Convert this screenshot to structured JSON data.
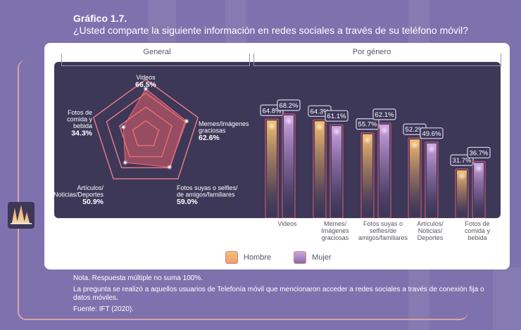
{
  "header": {
    "figure_number": "Gráfico 1.7.",
    "title": "¿Usted comparte la siguiente información en redes sociales a través de su teléfono móvil?"
  },
  "sections": {
    "general_label": "General",
    "gender_label": "Por género"
  },
  "legend": {
    "hombre": "Hombre",
    "mujer": "Mujer"
  },
  "colors": {
    "background": "#7e72ae",
    "panel": "#3d3758",
    "radar_fill": "#e0606a",
    "radar_grid": "#e07a86",
    "hombre": "#f0b060",
    "mujer": "#b090d0",
    "label_border": "#d8d4e8"
  },
  "notes": {
    "nota": "Nota. Respuesta múltiple no suma 100%.",
    "pregunta": "La pregunta se realizó a aquellos usuarios de Telefonía móvil que mencionaron acceder a redes sociales a través de conexión fija o datos móviles.",
    "fuente": "Fuente:  IFT (2020)."
  },
  "side_icon": "chart-peaks-icon",
  "chart_data": [
    {
      "type": "radar",
      "title": "General",
      "categories": [
        "Videos",
        "Memes/Imágenes graciosas",
        "Fotos suyas o selfies/ de amigos/familiares",
        "Artículos/ Noticias/Deportes",
        "Fotos de comida y bebida"
      ],
      "category_lines": [
        [
          "Videos"
        ],
        [
          "Memes/Imágenes",
          "graciosas"
        ],
        [
          "Fotos suyas o selfies/",
          "de amigos/familiares"
        ],
        [
          "Artículos/",
          "Noticias/Deportes"
        ],
        [
          "Fotos de",
          "comida y",
          "bebida"
        ]
      ],
      "values": [
        66.5,
        62.6,
        59.0,
        50.9,
        34.3
      ],
      "value_labels": [
        "66.5%",
        "62.6%",
        "59.0%",
        "50.9%",
        "34.3%"
      ],
      "rmax": 80,
      "grid_levels": [
        20,
        40,
        60,
        80
      ]
    },
    {
      "type": "bar",
      "title": "Por género",
      "categories": [
        "Videos",
        "Memes/ Imágenes graciosas",
        "Fotos suyas o selfies/de amigos/familiares",
        "Artículos/ Noticias/ Deportes",
        "Fotos de comida y bebida"
      ],
      "category_lines": [
        [
          "Videos"
        ],
        [
          "Memes/",
          "Imágenes",
          "graciosas"
        ],
        [
          "Fotos suyas o",
          "selfies/de",
          "amigos/familiares"
        ],
        [
          "Artículos/",
          "Noticias/",
          "Deportes"
        ],
        [
          "Fotos de",
          "comida y",
          "bebida"
        ]
      ],
      "series": [
        {
          "name": "Hombre",
          "values": [
            64.8,
            64.3,
            55.7,
            52.2,
            31.7
          ],
          "labels": [
            "64.8%",
            "64.3%",
            "55.7%",
            "52.2%",
            "31.7%"
          ]
        },
        {
          "name": "Mujer",
          "values": [
            68.2,
            61.1,
            62.1,
            49.6,
            36.7
          ],
          "labels": [
            "68.2%",
            "61.1%",
            "62.1%",
            "49.6%",
            "36.7%"
          ]
        }
      ],
      "ylim": [
        0,
        100
      ],
      "legend_position": "bottom"
    }
  ]
}
